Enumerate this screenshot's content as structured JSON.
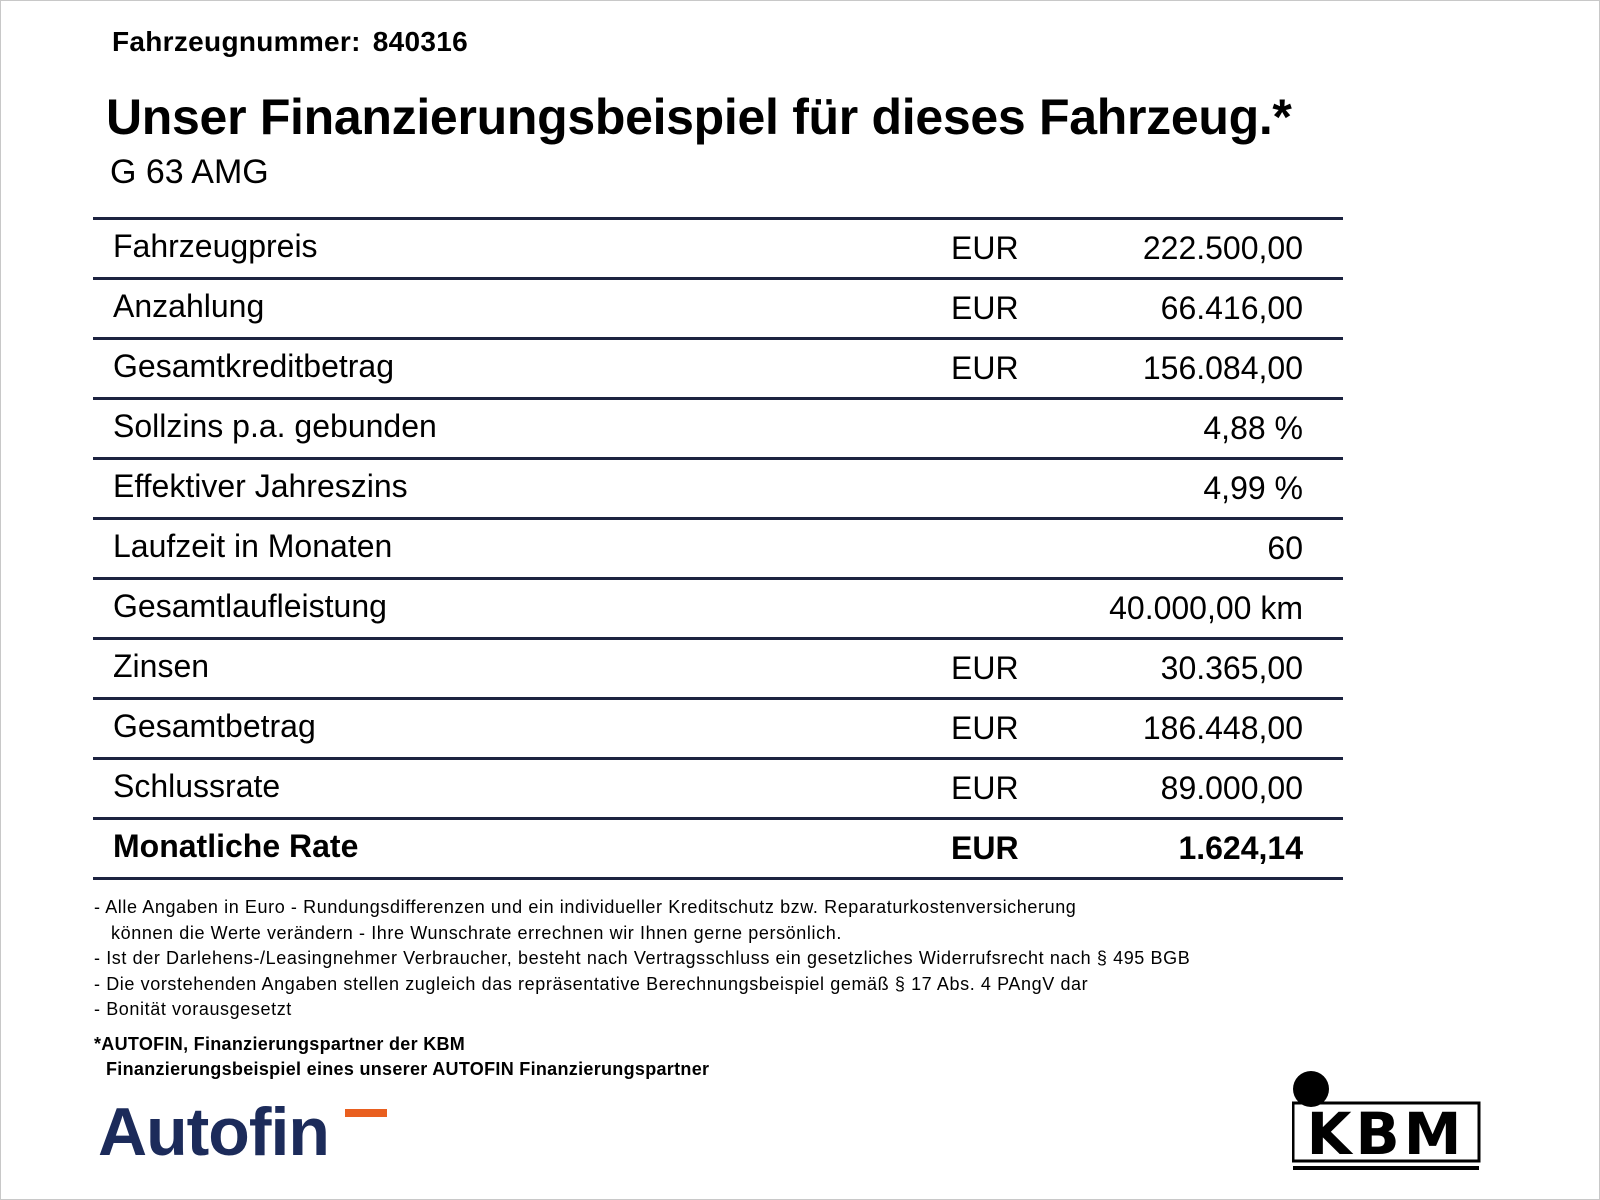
{
  "vehicle": {
    "number_label": "Fahrzeugnummer:",
    "number_value": "840316"
  },
  "headline": "Unser Finanzierungsbeispiel für dieses Fahrzeug.*",
  "model": "G 63 AMG",
  "rows": [
    {
      "label": "Fahrzeugpreis",
      "currency": "EUR",
      "amount": "222.500,00"
    },
    {
      "label": "Anzahlung",
      "currency": "EUR",
      "amount": "66.416,00"
    },
    {
      "label": "Gesamtkreditbetrag",
      "currency": "EUR",
      "amount": "156.084,00"
    },
    {
      "label": "Sollzins p.a. gebunden",
      "currency": "",
      "amount": "4,88 %"
    },
    {
      "label": "Effektiver Jahreszins",
      "currency": "",
      "amount": "4,99 %"
    },
    {
      "label": "Laufzeit in Monaten",
      "currency": "",
      "amount": "60"
    },
    {
      "label": "Gesamtlaufleistung",
      "currency": "",
      "amount": "40.000,00 km"
    },
    {
      "label": "Zinsen",
      "currency": "EUR",
      "amount": "30.365,00"
    },
    {
      "label": "Gesamtbetrag",
      "currency": "EUR",
      "amount": "186.448,00"
    },
    {
      "label": "Schlussrate",
      "currency": "EUR",
      "amount": "89.000,00"
    },
    {
      "label": "Monatliche Rate",
      "currency": "EUR",
      "amount": "1.624,14"
    }
  ],
  "notes": [
    "- Alle Angaben in Euro - Rundungsdifferenzen und ein individueller Kreditschutz bzw. Reparaturkostenversicherung",
    "können die Werte verändern - Ihre Wunschrate errechnen wir Ihnen gerne persönlich.",
    "- Ist der Darlehens-/Leasingnehmer Verbraucher, besteht nach Vertragsschluss ein gesetzliches Widerrufsrecht nach § 495 BGB",
    "- Die vorstehenden Angaben stellen zugleich das repräsentative Berechnungsbeispiel gemäß § 17 Abs. 4 PAngV dar",
    "- Bonität vorausgesetzt"
  ],
  "partner": {
    "line1": "*AUTOFIN, Finanzierungspartner der KBM",
    "line2": "Finanzierungsbeispiel eines unserer AUTOFIN Finanzierungspartner"
  },
  "logos": {
    "autofin_text": "Autofin",
    "autofin_color": "#1c2b5a",
    "autofin_accent": "#e95f1f",
    "kbm_text": "KBM"
  },
  "colors": {
    "table_rule": "#1d2340"
  }
}
